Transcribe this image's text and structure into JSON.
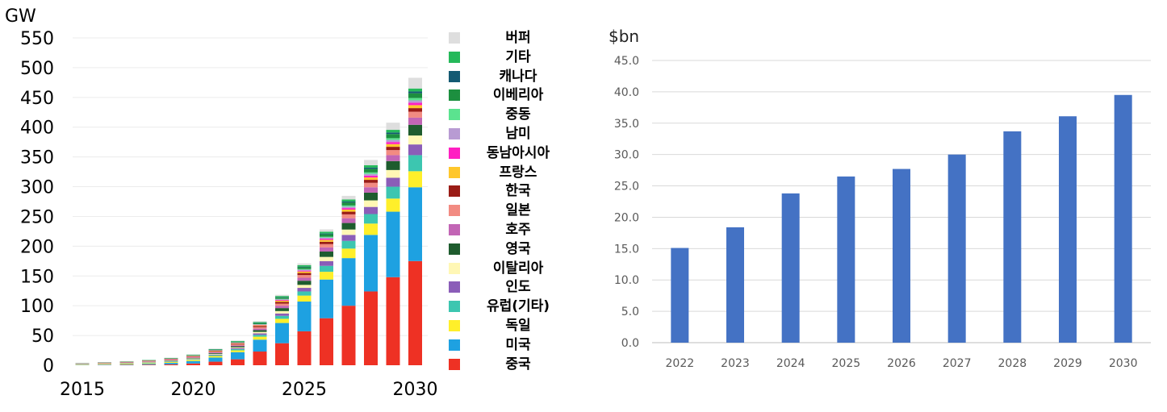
{
  "chart_data": [
    {
      "type": "bar",
      "stacked": true,
      "ylabel": "GW",
      "ylim": [
        0,
        550
      ],
      "yticks": [
        "0",
        "50",
        "100",
        "150",
        "200",
        "250",
        "300",
        "350",
        "400",
        "450",
        "500",
        "550"
      ],
      "xtick_labels": [
        "2015",
        "2020",
        "2025",
        "2030"
      ],
      "categories": [
        2015,
        2016,
        2017,
        2018,
        2019,
        2020,
        2021,
        2022,
        2023,
        2024,
        2025,
        2026,
        2027,
        2028,
        2029,
        2030
      ],
      "legend_order": [
        "버퍼",
        "기타",
        "캐나다",
        "이베리아",
        "중동",
        "남미",
        "동남아시아",
        "프랑스",
        "한국",
        "일본",
        "호주",
        "영국",
        "이탈리아",
        "인도",
        "유럽(기타)",
        "독일",
        "미국",
        "중국"
      ],
      "series": [
        {
          "name": "중국",
          "color": "#ee3124",
          "values": [
            0.2,
            0.4,
            0.6,
            1,
            1.5,
            3,
            6,
            10,
            23,
            37,
            57,
            79,
            100,
            124,
            148,
            175
          ]
        },
        {
          "name": "미국",
          "color": "#1ea1e1",
          "values": [
            0.5,
            0.8,
            1,
            1.5,
            2.5,
            4,
            7,
            12,
            20,
            34,
            50,
            65,
            80,
            95,
            110,
            124
          ]
        },
        {
          "name": "독일",
          "color": "#ffef2a",
          "values": [
            0.6,
            0.8,
            1,
            1.2,
            1.5,
            2,
            2.5,
            3,
            5,
            7,
            10,
            13,
            16,
            19,
            22,
            27
          ]
        },
        {
          "name": "유럽(기타)",
          "color": "#3cc6b0",
          "values": [
            0.2,
            0.3,
            0.4,
            0.5,
            0.8,
            1,
            1.5,
            2,
            3,
            5,
            7,
            10,
            13,
            16,
            20,
            27
          ]
        },
        {
          "name": "인도",
          "color": "#8b5db8",
          "values": [
            0.1,
            0.1,
            0.2,
            0.3,
            0.4,
            0.5,
            1,
            1.5,
            2.5,
            4,
            6,
            8,
            10,
            12,
            15,
            18
          ]
        },
        {
          "name": "이탈리아",
          "color": "#fff7b5",
          "values": [
            0.3,
            0.4,
            0.5,
            0.6,
            0.8,
            1,
            1.2,
            1.5,
            2.5,
            4,
            5,
            7,
            9,
            11,
            13,
            15
          ]
        },
        {
          "name": "영국",
          "color": "#1e5c2e",
          "values": [
            0.2,
            0.3,
            0.4,
            0.5,
            0.6,
            0.8,
            1.2,
            1.8,
            3,
            5,
            7,
            9,
            11,
            13,
            15,
            18
          ]
        },
        {
          "name": "호주",
          "color": "#c265b5",
          "values": [
            0.3,
            0.4,
            0.5,
            0.6,
            0.8,
            1,
            1.2,
            1.5,
            2.5,
            4,
            5,
            7,
            8,
            9,
            10,
            12
          ]
        },
        {
          "name": "일본",
          "color": "#f28b82",
          "values": [
            0.3,
            0.4,
            0.5,
            0.6,
            0.8,
            1,
            1.3,
            1.6,
            2.5,
            3.5,
            4.5,
            5.5,
            6.5,
            7.5,
            8.5,
            10
          ]
        },
        {
          "name": "한국",
          "color": "#9a1c16",
          "values": [
            0.2,
            0.3,
            0.4,
            0.5,
            0.6,
            0.8,
            1,
            1.3,
            2,
            3,
            3.5,
            4,
            4.5,
            5,
            5.5,
            6
          ]
        },
        {
          "name": "프랑스",
          "color": "#ffc72c",
          "values": [
            0.1,
            0.1,
            0.2,
            0.2,
            0.3,
            0.4,
            0.5,
            0.8,
            1.2,
            2,
            2.5,
            3,
            3.5,
            4,
            4.5,
            5
          ]
        },
        {
          "name": "동남아시아",
          "color": "#ff1fc2",
          "values": [
            0.1,
            0.1,
            0.1,
            0.2,
            0.2,
            0.3,
            0.4,
            0.5,
            0.8,
            1.2,
            1.5,
            2,
            2.5,
            3,
            3.5,
            4
          ]
        },
        {
          "name": "남미",
          "color": "#b89bd3",
          "values": [
            0.1,
            0.1,
            0.1,
            0.1,
            0.2,
            0.3,
            0.3,
            0.4,
            0.6,
            1,
            1.5,
            2,
            2.5,
            3,
            3.5,
            4
          ]
        },
        {
          "name": "중동",
          "color": "#5be38f",
          "values": [
            0.1,
            0.1,
            0.1,
            0.1,
            0.1,
            0.2,
            0.2,
            0.3,
            0.5,
            0.8,
            1.2,
            1.5,
            2,
            2.5,
            3,
            4
          ]
        },
        {
          "name": "이베리아",
          "color": "#1c8f3f",
          "values": [
            0.1,
            0.2,
            0.3,
            0.4,
            0.5,
            0.6,
            0.8,
            1,
            1.5,
            2,
            3,
            4,
            5,
            6,
            7,
            8
          ]
        },
        {
          "name": "캐나다",
          "color": "#145a73",
          "values": [
            0.1,
            0.1,
            0.1,
            0.1,
            0.2,
            0.2,
            0.3,
            0.4,
            0.5,
            0.8,
            1,
            1.3,
            1.6,
            2,
            2.5,
            3
          ]
        },
        {
          "name": "기타",
          "color": "#25b95a",
          "values": [
            0.2,
            0.2,
            0.3,
            0.4,
            0.5,
            0.6,
            0.8,
            1,
            1.5,
            2,
            2.5,
            3,
            3.5,
            4,
            4.5,
            5
          ]
        },
        {
          "name": "버퍼",
          "color": "#dedede",
          "values": [
            0.1,
            0.2,
            0.3,
            0.4,
            0.5,
            0.6,
            0.8,
            1,
            1.5,
            2,
            3,
            4,
            6,
            9,
            12,
            18
          ]
        }
      ]
    },
    {
      "type": "bar",
      "ylabel": "$bn",
      "ylim": [
        0,
        45
      ],
      "yticks": [
        "0.0",
        "5.0",
        "10.0",
        "15.0",
        "20.0",
        "25.0",
        "30.0",
        "35.0",
        "40.0",
        "45.0"
      ],
      "categories": [
        "2022",
        "2023",
        "2024",
        "2025",
        "2026",
        "2027",
        "2028",
        "2029",
        "2030"
      ],
      "values": [
        15.1,
        18.4,
        23.8,
        26.5,
        27.7,
        30.0,
        33.7,
        36.1,
        39.5
      ],
      "color": "#4472c4",
      "grid": true
    }
  ]
}
